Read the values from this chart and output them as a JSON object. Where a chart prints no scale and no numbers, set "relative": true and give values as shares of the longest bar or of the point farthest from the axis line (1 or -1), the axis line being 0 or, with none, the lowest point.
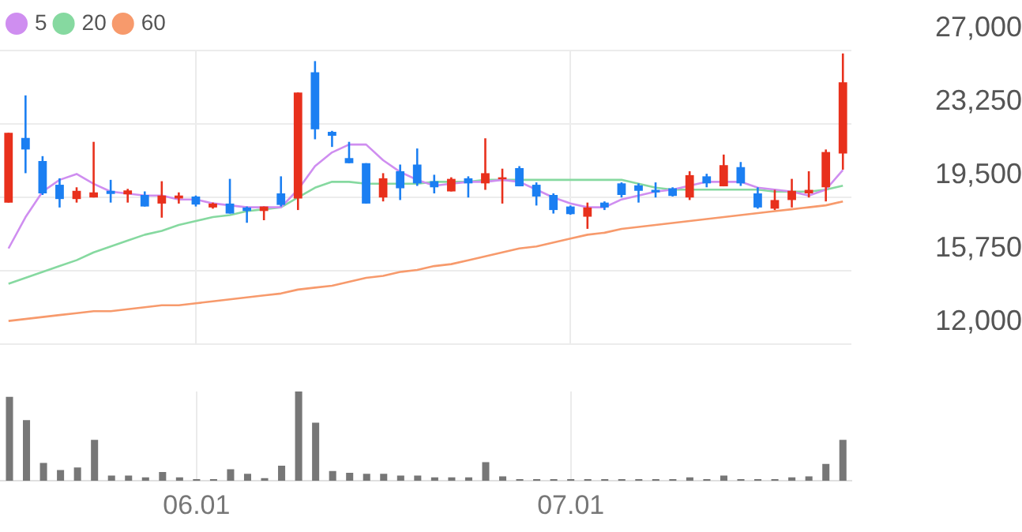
{
  "chart_data": [
    {
      "type": "candlestick",
      "categories": [
        null,
        null,
        null,
        null,
        null,
        null,
        null,
        null,
        null,
        null,
        null,
        "06.01",
        null,
        null,
        null,
        null,
        null,
        null,
        null,
        null,
        null,
        null,
        null,
        null,
        null,
        null,
        null,
        null,
        null,
        null,
        null,
        null,
        null,
        "07.01",
        null,
        null,
        null,
        null,
        null,
        null,
        null,
        null,
        null,
        null,
        null,
        null,
        null,
        null,
        null,
        null
      ],
      "ohlc": [
        [
          19240,
          22800,
          19240,
          22800
        ],
        [
          22540,
          24710,
          20740,
          21950
        ],
        [
          21360,
          21610,
          19630,
          19710
        ],
        [
          20150,
          20480,
          18990,
          19420
        ],
        [
          19420,
          20020,
          19240,
          19840
        ],
        [
          19500,
          22340,
          19500,
          19760
        ],
        [
          19840,
          20400,
          19240,
          19680
        ],
        [
          19660,
          19940,
          19240,
          19860
        ],
        [
          19630,
          19810,
          19040,
          19040
        ],
        [
          19190,
          20330,
          18470,
          19600
        ],
        [
          19450,
          19760,
          19190,
          19600
        ],
        [
          19550,
          19600,
          19040,
          19140
        ],
        [
          18990,
          19240,
          18930,
          19190
        ],
        [
          19190,
          20450,
          18680,
          18680
        ],
        [
          18990,
          19040,
          18210,
          18810
        ],
        [
          18810,
          19040,
          18340,
          19040
        ],
        [
          19710,
          20580,
          19040,
          19120
        ],
        [
          19450,
          24860,
          18860,
          24860
        ],
        [
          25890,
          26460,
          22470,
          22980
        ],
        [
          22850,
          22900,
          22080,
          22650
        ],
        [
          21510,
          22340,
          21250,
          21250
        ],
        [
          21250,
          21250,
          19190,
          19190
        ],
        [
          19500,
          20740,
          19300,
          20480
        ],
        [
          20840,
          21180,
          19370,
          19970
        ],
        [
          21180,
          22000,
          20090,
          20220
        ],
        [
          20330,
          20660,
          19710,
          20020
        ],
        [
          19810,
          20530,
          19810,
          20450
        ],
        [
          20480,
          20580,
          19500,
          20220
        ],
        [
          20220,
          22520,
          19890,
          20740
        ],
        [
          20430,
          20970,
          19190,
          20530
        ],
        [
          21000,
          21100,
          20070,
          20070
        ],
        [
          20150,
          20270,
          19090,
          19550
        ],
        [
          19630,
          19710,
          18680,
          18860
        ],
        [
          19040,
          19090,
          18620,
          18650
        ],
        [
          18520,
          19240,
          17900,
          18990
        ],
        [
          19240,
          19300,
          18860,
          18990
        ],
        [
          20220,
          20270,
          19500,
          19630
        ],
        [
          20120,
          20220,
          19240,
          19840
        ],
        [
          19890,
          20270,
          19500,
          19760
        ],
        [
          19970,
          20020,
          19550,
          19580
        ],
        [
          19500,
          20840,
          19370,
          20640
        ],
        [
          20580,
          20710,
          20020,
          20220
        ],
        [
          20070,
          21690,
          20070,
          21150
        ],
        [
          21050,
          21310,
          20090,
          20220
        ],
        [
          19710,
          20020,
          18930,
          18990
        ],
        [
          18930,
          19890,
          18860,
          19370
        ],
        [
          19370,
          20450,
          18990,
          19840
        ],
        [
          19710,
          20840,
          19500,
          19890
        ],
        [
          20020,
          21950,
          19300,
          21820
        ],
        [
          21740,
          26850,
          20920,
          25380
        ]
      ],
      "colors": [
        "#e8301c",
        "#1b7ff2",
        "#1b7ff2",
        "#1b7ff2",
        "#e8301c",
        "#e8301c",
        "#1b7ff2",
        "#e8301c",
        "#1b7ff2",
        "#e8301c",
        "#e8301c",
        "#1b7ff2",
        "#e8301c",
        "#1b7ff2",
        "#1b7ff2",
        "#e8301c",
        "#1b7ff2",
        "#e8301c",
        "#1b7ff2",
        "#1b7ff2",
        "#1b7ff2",
        "#1b7ff2",
        "#e8301c",
        "#1b7ff2",
        "#1b7ff2",
        "#1b7ff2",
        "#e8301c",
        "#1b7ff2",
        "#e8301c",
        "#e8301c",
        "#1b7ff2",
        "#1b7ff2",
        "#1b7ff2",
        "#1b7ff2",
        "#e8301c",
        "#1b7ff2",
        "#1b7ff2",
        "#1b7ff2",
        "#1b7ff2",
        "#1b7ff2",
        "#e8301c",
        "#1b7ff2",
        "#e8301c",
        "#1b7ff2",
        "#1b7ff2",
        "#e8301c",
        "#e8301c",
        "#e8301c",
        "#e8301c",
        "#e8301c"
      ],
      "series": [
        {
          "name": "5",
          "type": "line",
          "color": "#cf8ef0",
          "values": [
            16900,
            18500,
            19800,
            20400,
            20700,
            20200,
            19800,
            19700,
            19600,
            19600,
            19400,
            19400,
            19200,
            19100,
            19000,
            19000,
            19000,
            19900,
            21100,
            21800,
            22200,
            22200,
            21400,
            20800,
            20400,
            20100,
            20200,
            20300,
            20300,
            20400,
            20300,
            19900,
            19500,
            19200,
            19000,
            19000,
            19400,
            19600,
            19800,
            19900,
            20100,
            20300,
            20300,
            20300,
            20000,
            19900,
            19800,
            19600,
            19900,
            20900
          ]
        },
        {
          "name": "20",
          "type": "line",
          "color": "#86d9a0",
          "values": [
            15100,
            15400,
            15700,
            16000,
            16300,
            16700,
            17000,
            17300,
            17600,
            17800,
            18100,
            18300,
            18500,
            18600,
            18800,
            18900,
            19000,
            19500,
            20000,
            20300,
            20300,
            20200,
            20200,
            20200,
            20200,
            20300,
            20300,
            20300,
            20400,
            20400,
            20400,
            20400,
            20400,
            20400,
            20400,
            20400,
            20400,
            20200,
            20000,
            19900,
            19900,
            19900,
            19900,
            19900,
            19900,
            19800,
            19800,
            19800,
            19900,
            20100
          ]
        },
        {
          "name": "60",
          "type": "line",
          "color": "#f79a6c",
          "values": [
            13200,
            13300,
            13400,
            13500,
            13600,
            13700,
            13700,
            13800,
            13900,
            14000,
            14000,
            14100,
            14200,
            14300,
            14400,
            14500,
            14600,
            14800,
            14900,
            15000,
            15200,
            15400,
            15500,
            15700,
            15800,
            16000,
            16100,
            16300,
            16500,
            16700,
            16900,
            17000,
            17200,
            17400,
            17600,
            17700,
            17900,
            18000,
            18100,
            18200,
            18300,
            18400,
            18500,
            18600,
            18700,
            18800,
            18900,
            19000,
            19100,
            19300
          ]
        }
      ],
      "ylim": [
        12000,
        27000
      ],
      "yticks": [
        {
          "value": 12000,
          "label": "12,000"
        },
        {
          "value": 15750,
          "label": "15,750"
        },
        {
          "value": 19500,
          "label": "19,500"
        },
        {
          "value": 23250,
          "label": "23,250"
        },
        {
          "value": 27000,
          "label": "27,000"
        }
      ],
      "grid": true,
      "legend": "top left",
      "marker": "none",
      "tick_labels": "y"
    },
    {
      "type": "bar",
      "categories": [
        null,
        null,
        null,
        null,
        null,
        null,
        null,
        null,
        null,
        null,
        null,
        "06.01",
        null,
        null,
        null,
        null,
        null,
        null,
        null,
        null,
        null,
        null,
        null,
        null,
        null,
        null,
        null,
        null,
        null,
        null,
        null,
        null,
        null,
        "07.01",
        null,
        null,
        null,
        null,
        null,
        null,
        null,
        null,
        null,
        null,
        null,
        null,
        null,
        null,
        null,
        null
      ],
      "values": [
        0.94,
        0.68,
        0.2,
        0.12,
        0.15,
        0.46,
        0.06,
        0.06,
        0.04,
        0.1,
        0.04,
        0.02,
        0.02,
        0.13,
        0.08,
        0.03,
        0.17,
        1,
        0.65,
        0.11,
        0.09,
        0.08,
        0.08,
        0.06,
        0.06,
        0.04,
        0.04,
        0.04,
        0.21,
        0.05,
        0.02,
        0.02,
        0.02,
        0.02,
        0.02,
        0.02,
        0.02,
        0.02,
        0.02,
        0.02,
        0.04,
        0.02,
        0.06,
        0.02,
        0.02,
        0.02,
        0.04,
        0.05,
        0.19,
        0.46
      ],
      "color": "#777777",
      "relative": true,
      "grid": "x",
      "tick_labels": "x"
    }
  ]
}
